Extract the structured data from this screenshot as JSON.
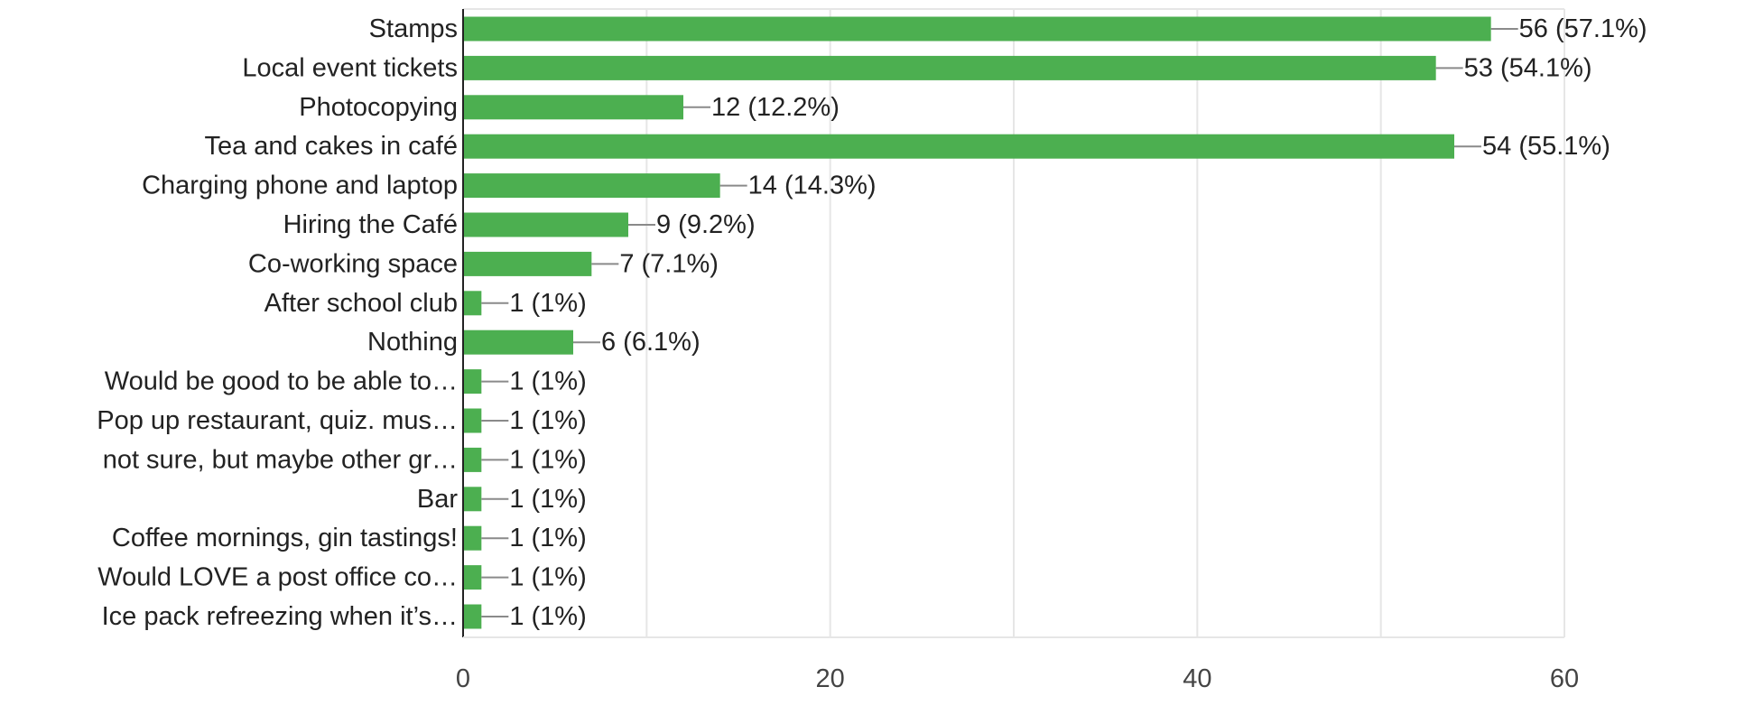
{
  "chart_data": {
    "type": "bar",
    "orientation": "horizontal",
    "categories": [
      "Stamps",
      "Local event tickets",
      "Photocopying",
      "Tea and cakes in café",
      "Charging phone and laptop",
      "Hiring the Café",
      "Co-working space",
      "After school club",
      "Nothing",
      "Would be good to be able to…",
      "Pop up restaurant, quiz. mus…",
      "not sure, but maybe other gr…",
      "Bar",
      "Coffee mornings, gin tastings!",
      "Would LOVE a post office co…",
      "Ice pack refreezing when it’s…"
    ],
    "values": [
      56,
      53,
      12,
      54,
      14,
      9,
      7,
      1,
      6,
      1,
      1,
      1,
      1,
      1,
      1,
      1
    ],
    "data_labels": [
      "56 (57.1%)",
      "53 (54.1%)",
      "12 (12.2%)",
      "54 (55.1%)",
      "14 (14.3%)",
      "9 (9.2%)",
      "7 (7.1%)",
      "1 (1%)",
      "6 (6.1%)",
      "1 (1%)",
      "1 (1%)",
      "1 (1%)",
      "1 (1%)",
      "1 (1%)",
      "1 (1%)",
      "1 (1%)"
    ],
    "xlim": [
      0,
      60
    ],
    "x_ticks": [
      0,
      20,
      40,
      60
    ],
    "x_tick_labels": [
      "0",
      "20",
      "40",
      "60"
    ],
    "minor_gridlines": [
      10,
      30,
      50
    ],
    "grid": true,
    "title": "",
    "xlabel": "",
    "ylabel": "",
    "colors": {
      "bar": "#4caf50",
      "axis": "#222222",
      "grid": "#e6e6e6",
      "leader": "#8a8a8a",
      "text": "#222222",
      "tick_text": "#444444"
    }
  }
}
